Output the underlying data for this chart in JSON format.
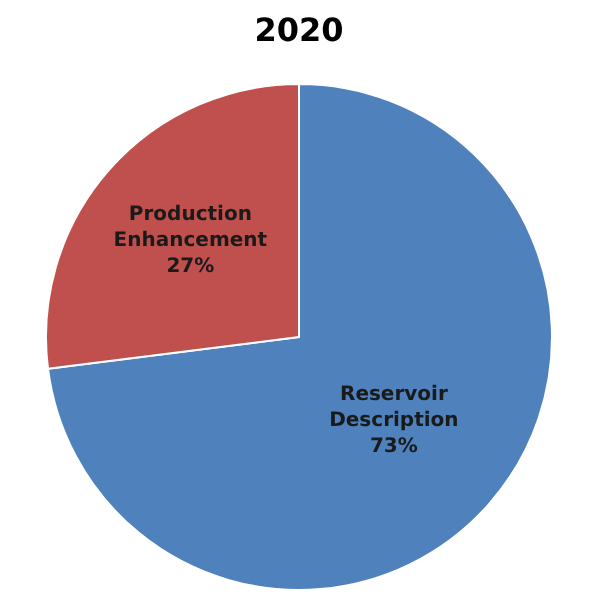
{
  "chart_data": {
    "type": "pie",
    "title": "2020",
    "categories": [
      "Reservoir Description",
      "Production Enhancement"
    ],
    "values": [
      73,
      27
    ],
    "colors": [
      "#4f81bd",
      "#c0504d"
    ],
    "value_labels": [
      "73%",
      "27%"
    ],
    "legend": false
  }
}
